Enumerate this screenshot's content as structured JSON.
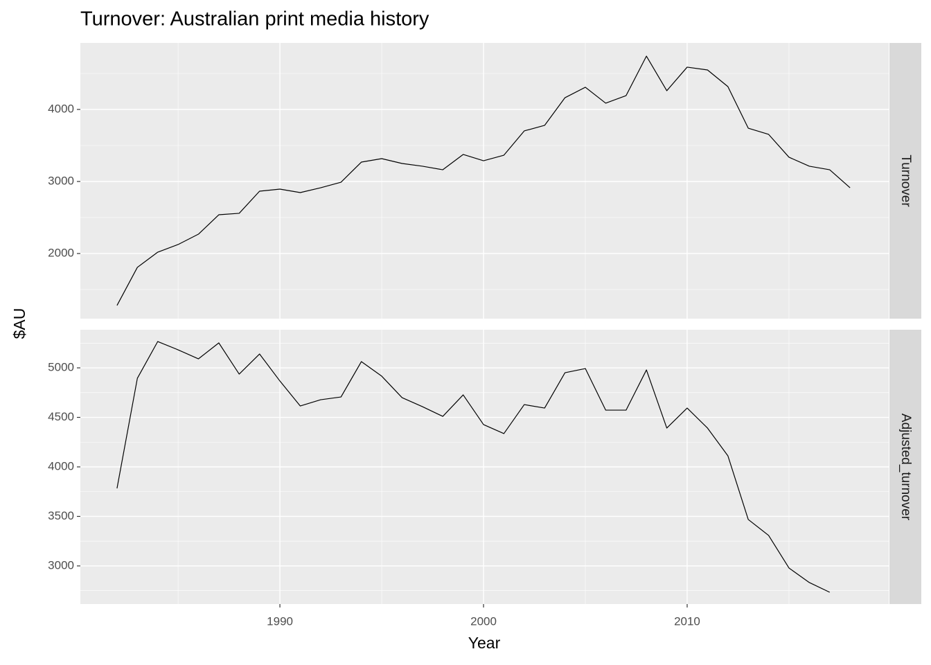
{
  "title": "Turnover: Australian print media history",
  "x_label": "Year",
  "y_label": "$AU",
  "chart_data": [
    {
      "type": "line",
      "x": [
        1982,
        1983,
        1984,
        1985,
        1986,
        1987,
        1988,
        1989,
        1990,
        1991,
        1992,
        1993,
        1994,
        1995,
        1996,
        1997,
        1998,
        1999,
        2000,
        2001,
        2002,
        2003,
        2004,
        2005,
        2006,
        2007,
        2008,
        2009,
        2010,
        2011,
        2012,
        2013,
        2014,
        2015,
        2016,
        2017,
        2018
      ],
      "series": [
        {
          "name": "Turnover",
          "color": "#000000",
          "values": [
            1279,
            1808,
            2019,
            2125,
            2269,
            2538,
            2558,
            2865,
            2894,
            2846,
            2913,
            2990,
            3269,
            3317,
            3250,
            3212,
            3163,
            3375,
            3288,
            3365,
            3702,
            3779,
            4163,
            4308,
            4087,
            4192,
            4740,
            4260,
            4587,
            4548,
            4317,
            3740,
            3654,
            3337,
            3212,
            3163,
            2913
          ]
        }
      ],
      "xlim": [
        1980.2,
        2019.9
      ],
      "xticks": [
        1990,
        2000,
        2010
      ],
      "x_minor_ticks": [
        1985,
        1995,
        2005,
        2015
      ],
      "ylim": [
        1096,
        4923
      ],
      "yticks": [
        2000,
        3000,
        4000
      ],
      "y_minor_ticks": [
        1500,
        2500,
        3500,
        4500
      ],
      "grid": true
    },
    {
      "type": "line",
      "x": [
        1982,
        1983,
        1984,
        1985,
        1986,
        1987,
        1988,
        1989,
        1990,
        1991,
        1992,
        1993,
        1994,
        1995,
        1996,
        1997,
        1998,
        1999,
        2000,
        2001,
        2002,
        2003,
        2004,
        2005,
        2006,
        2007,
        2008,
        2009,
        2010,
        2011,
        2012,
        2013,
        2014,
        2015,
        2016,
        2017
      ],
      "series": [
        {
          "name": "Adjusted_turnover",
          "color": "#000000",
          "values": [
            3783,
            4895,
            5266,
            5182,
            5091,
            5252,
            4937,
            5140,
            4867,
            4615,
            4678,
            4706,
            5063,
            4916,
            4699,
            4608,
            4510,
            4727,
            4427,
            4336,
            4629,
            4594,
            4951,
            4993,
            4573,
            4573,
            4979,
            4392,
            4594,
            4392,
            4112,
            3469,
            3308,
            2979,
            2832,
            2734
          ]
        }
      ],
      "xlim": [
        1980.2,
        2019.9
      ],
      "xticks": [
        1990,
        2000,
        2010
      ],
      "x_minor_ticks": [
        1985,
        1995,
        2005,
        2015
      ],
      "ylim": [
        2615,
        5385
      ],
      "yticks": [
        3000,
        3500,
        4000,
        4500,
        5000
      ],
      "y_minor_ticks": [
        2750,
        3250,
        3750,
        4250,
        4750,
        5250
      ],
      "grid": true
    }
  ]
}
